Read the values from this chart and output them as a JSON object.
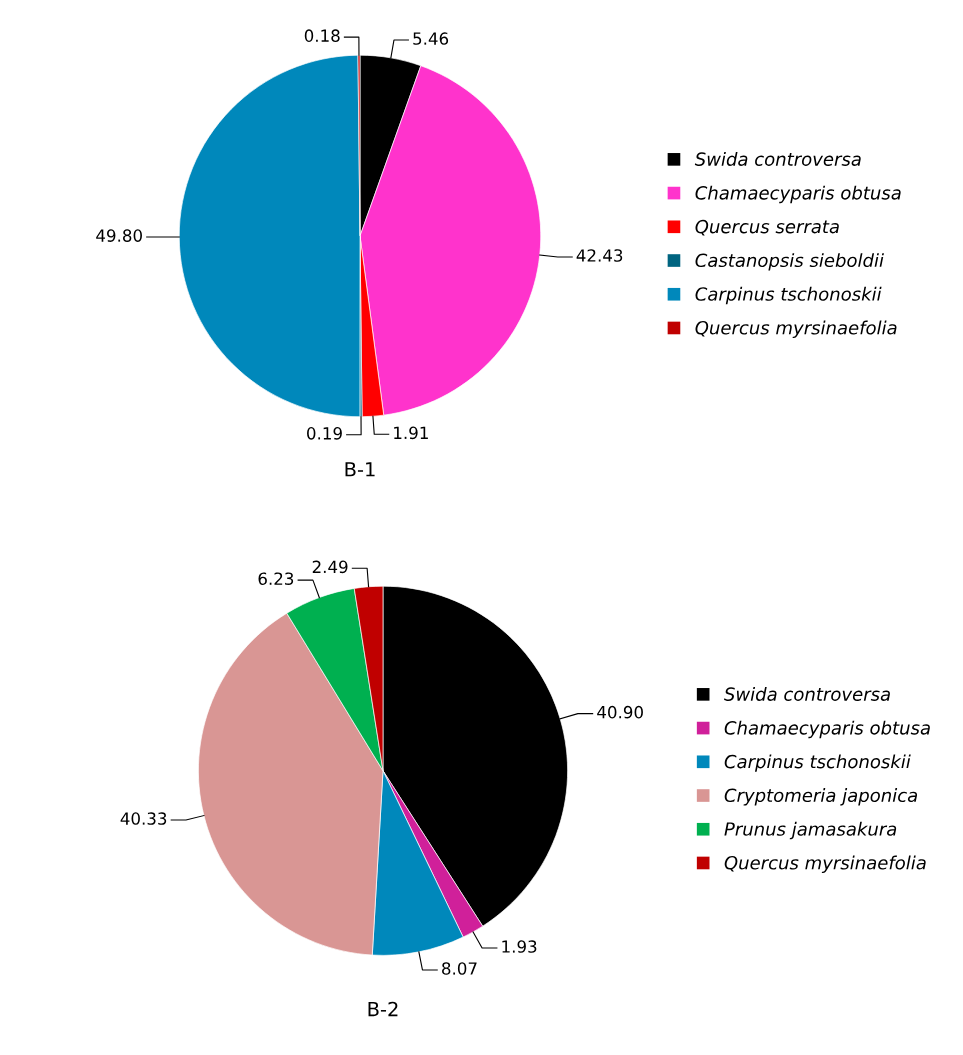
{
  "chart_data": [
    {
      "type": "pie",
      "title": "B-1",
      "categories": [
        "Swida controversa",
        "Chamaecyparis obtusa",
        "Quercus serrata",
        "Castanopsis sieboldii",
        "Carpinus tschonoskii",
        "Quercus myrsinaefolia"
      ],
      "values": [
        5.46,
        42.43,
        1.91,
        0.19,
        49.8,
        0.18
      ],
      "value_labels": [
        "5.46",
        "42.43",
        "1.91",
        "0.19",
        "49.80",
        "0.18"
      ],
      "colors": [
        "#000000",
        "#ff33cc",
        "#ff0000",
        "#006480",
        "#0088bb",
        "#c00000"
      ],
      "legend": "right"
    },
    {
      "type": "pie",
      "title": "B-2",
      "categories": [
        "Swida controversa",
        "Chamaecyparis obtusa",
        "Carpinus tschonoskii",
        "Cryptomeria japonica",
        "Prunus jamasakura",
        "Quercus myrsinaefolia"
      ],
      "values": [
        40.9,
        1.93,
        8.07,
        40.33,
        6.23,
        2.49
      ],
      "value_labels": [
        "40.90",
        "1.93",
        "8.07",
        "40.33",
        "6.23",
        "2.49"
      ],
      "colors": [
        "#000000",
        "#d0209a",
        "#0088bb",
        "#d99694",
        "#00b050",
        "#c00000"
      ],
      "legend": "right"
    }
  ]
}
